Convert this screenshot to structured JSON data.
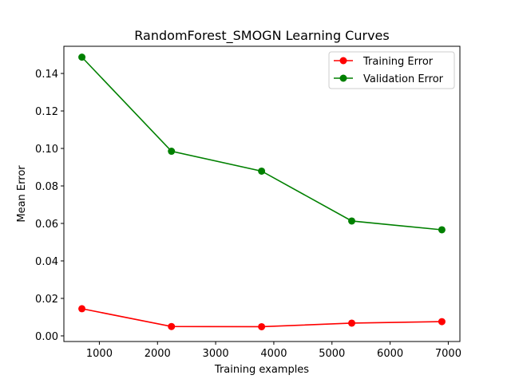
{
  "chart_data": {
    "type": "line",
    "title": "RandomForest_SMOGN Learning Curves",
    "xlabel": "Training examples",
    "ylabel": "Mean Error",
    "xlim": [
      390,
      7200
    ],
    "ylim": [
      -0.003,
      0.1545
    ],
    "xticks": [
      1000,
      2000,
      3000,
      4000,
      5000,
      6000,
      7000
    ],
    "xtick_labels": [
      "1000",
      "2000",
      "3000",
      "4000",
      "5000",
      "6000",
      "7000"
    ],
    "yticks": [
      0.0,
      0.02,
      0.04,
      0.06,
      0.08,
      0.1,
      0.12,
      0.14
    ],
    "ytick_labels": [
      "0.00",
      "0.02",
      "0.04",
      "0.06",
      "0.08",
      "0.10",
      "0.12",
      "0.14"
    ],
    "x": [
      700,
      2240,
      3790,
      5340,
      6890
    ],
    "series": [
      {
        "name": "Training Error",
        "color": "#ff0000",
        "values": [
          0.0145,
          0.005,
          0.0049,
          0.0068,
          0.0076
        ]
      },
      {
        "name": "Validation Error",
        "color": "#008000",
        "values": [
          0.1487,
          0.0985,
          0.0879,
          0.0613,
          0.0566
        ]
      }
    ],
    "grid": false,
    "legend_position": "top-right"
  }
}
